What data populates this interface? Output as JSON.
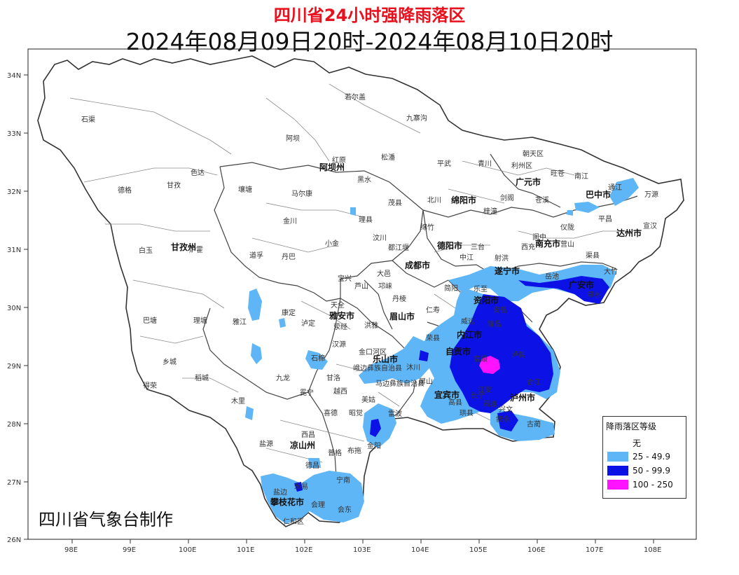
{
  "title": "四川省24小时强降雨落区",
  "subtitle": "2024年08月09日20时-2024年08月10日20时",
  "maker": "四川省气象台制作",
  "lat_ticks": [
    "34N",
    "33N",
    "32N",
    "31N",
    "30N",
    "29N",
    "28N",
    "27N",
    "26N"
  ],
  "lon_ticks": [
    "98E",
    "99E",
    "100E",
    "101E",
    "102E",
    "103E",
    "104E",
    "105E",
    "106E",
    "107E",
    "108E"
  ],
  "legend": {
    "title": "降雨落区等级",
    "items": [
      {
        "label": "无",
        "color": "#ffffff"
      },
      {
        "label": "25 - 49.9",
        "color": "#5fb6f7"
      },
      {
        "label": "50 - 99.9",
        "color": "#0c12e6"
      },
      {
        "label": "100 - 250",
        "color": "#ff12ff"
      }
    ]
  },
  "cities": [
    "阿坝州",
    "甘孜州",
    "雅安市",
    "乐山市",
    "眉山市",
    "成都市",
    "德阳市",
    "绵阳市",
    "广元市",
    "巴中市",
    "达州市",
    "南充市",
    "遂宁市",
    "广安市",
    "资阳市",
    "内江市",
    "自贡市",
    "宜宾市",
    "泸州市",
    "凉山州",
    "攀枝花市"
  ],
  "counties": [
    "石渠",
    "若尔盖",
    "九寨沟",
    "阿坝",
    "红原",
    "松潘",
    "平武",
    "青川",
    "朝天区",
    "利州区",
    "旺苍",
    "南江",
    "通江",
    "万源",
    "德格",
    "色达",
    "甘孜",
    "壤塘",
    "马尔康",
    "黑水",
    "茂县",
    "北川",
    "剑阁",
    "苍溪",
    "平昌",
    "宣汉",
    "金川",
    "理县",
    "汶川",
    "绵竹",
    "梓潼",
    "阆中",
    "仪陇",
    "大竹",
    "白玉",
    "炉霍",
    "道孚",
    "丹巴",
    "小金",
    "都江堰",
    "中江",
    "三台",
    "射洪",
    "西充",
    "营山",
    "渠县",
    "宝兴",
    "芦山",
    "邛崃",
    "大邑",
    "简阳",
    "乐至",
    "安岳",
    "岳池",
    "邻水",
    "巴塘",
    "理塘",
    "雅江",
    "康定",
    "泸定",
    "天全",
    "荥经",
    "汉源",
    "洪雅",
    "丹棱",
    "仁寿",
    "威远",
    "隆昌",
    "荣县",
    "富顺",
    "泸县",
    "合江",
    "乡城",
    "稻城",
    "九龙",
    "石棉",
    "金口河区",
    "峨边彝族自治县",
    "马边彝族自治县",
    "沐川",
    "屏山",
    "江安",
    "长宁",
    "珙县",
    "叙永",
    "古蔺",
    "得荣",
    "木里",
    "冕宁",
    "越西",
    "甘洛",
    "美姑",
    "雷波",
    "昭觉",
    "喜德",
    "西昌",
    "布拖",
    "金阳",
    "盐源",
    "德昌",
    "普格",
    "宁南",
    "会东",
    "会理",
    "米易",
    "盐边",
    "仁和区",
    "筠连",
    "兴文",
    "高县"
  ]
}
